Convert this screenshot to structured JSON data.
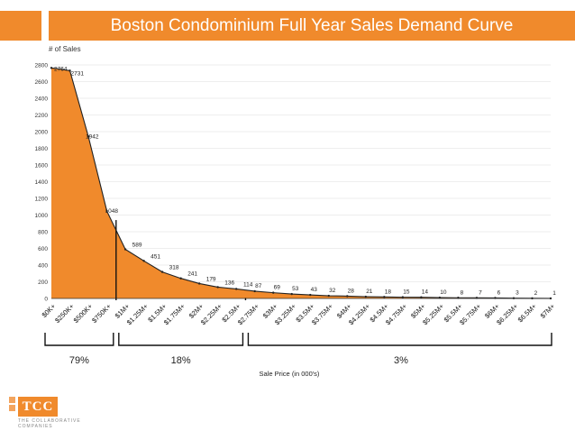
{
  "title": "Boston Condominium Full Year Sales Demand Curve",
  "logo": {
    "name": "TCC",
    "subtitle_line1": "THE COLLABORATIVE",
    "subtitle_line2": "COMPANIES"
  },
  "colors": {
    "accent": "#f08a2c",
    "fill": "#f08a2c",
    "line": "#222222",
    "grid": "#dddddd"
  },
  "chart_data": {
    "type": "area",
    "title": "Boston Condominium Full Year Sales Demand Curve",
    "ylabel": "# of Sales",
    "xlabel": "Sale Price (in 000's)",
    "ylim": [
      0,
      2800
    ],
    "yticks": [
      0,
      200,
      400,
      600,
      800,
      1000,
      1200,
      1400,
      1600,
      1800,
      2000,
      2200,
      2400,
      2600,
      2800
    ],
    "grid": true,
    "categories": [
      "$0K+",
      "$250K+",
      "$500K+",
      "$750K+",
      "$1M+",
      "$1.25M+",
      "$1.5M+",
      "$1.75M+",
      "$2M+",
      "$2.25M+",
      "$2.5M+",
      "$2.75M+",
      "$3M+",
      "$3.25M+",
      "$3.5M+",
      "$3.75M+",
      "$4M+",
      "$4.25M+",
      "$4.5M+",
      "$4.75M+",
      "$5M+",
      "$5.25M+",
      "$5.5M+",
      "$5.75M+",
      "$6M+",
      "$6.25M+",
      "$6.5M+",
      "$7M+"
    ],
    "values": [
      2764,
      2731,
      1942,
      1048,
      589,
      451,
      318,
      241,
      179,
      136,
      114,
      87,
      69,
      53,
      43,
      32,
      28,
      21,
      18,
      15,
      14,
      10,
      8,
      7,
      6,
      3,
      2,
      1
    ],
    "brackets": [
      {
        "label": "79%",
        "from": 0,
        "to": 3
      },
      {
        "label": "18%",
        "from": 4,
        "to": 10
      },
      {
        "label": "3%",
        "from": 11,
        "to": 27
      }
    ]
  }
}
